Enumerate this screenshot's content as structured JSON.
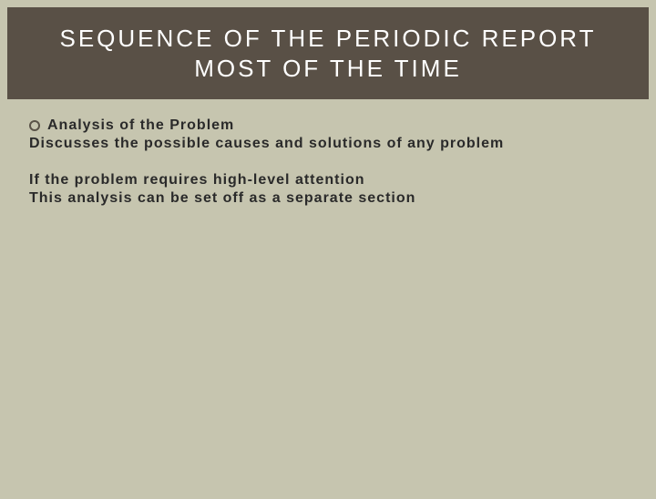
{
  "header": {
    "title_line1": "SEQUENCE OF THE PERIODIC REPORT",
    "title_line2": "MOST OF THE TIME"
  },
  "content": {
    "bullet_title": "Analysis of the Problem",
    "line1": "Discusses the possible causes and solutions of any problem",
    "line2": "If the problem requires high-level attention",
    "line3": "This analysis can be set off as a separate section"
  },
  "colors": {
    "background": "#c6c5af",
    "header_bg": "#595046",
    "header_text": "#ffffff",
    "body_text": "#2a2a2a",
    "bullet_border": "#5a5348"
  },
  "typography": {
    "header_fontsize": 26,
    "header_letterspacing": 3,
    "body_fontsize": 16,
    "body_letterspacing": 1,
    "body_weight": "bold"
  }
}
